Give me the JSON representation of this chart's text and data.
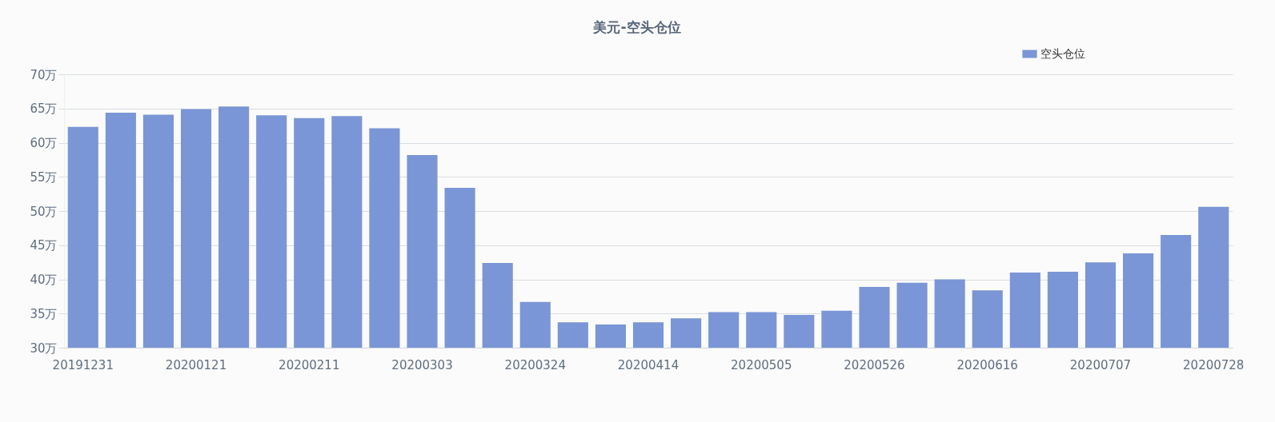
{
  "chart_data": {
    "type": "bar",
    "title": "美元-空头仓位",
    "categories": [
      "20191231",
      null,
      null,
      "20200121",
      null,
      null,
      "20200211",
      null,
      null,
      "20200303",
      null,
      null,
      "20200324",
      null,
      null,
      "20200414",
      null,
      null,
      "20200505",
      null,
      null,
      "20200526",
      null,
      null,
      "20200616",
      null,
      null,
      "20200707",
      null,
      null,
      "20200728"
    ],
    "series": [
      {
        "name": "空头仓位",
        "color": "#7b96d6",
        "values": [
          62.3,
          64.4,
          64.1,
          64.9,
          65.3,
          64.0,
          63.6,
          63.9,
          62.1,
          58.2,
          53.4,
          42.4,
          36.7,
          33.7,
          33.4,
          33.7,
          34.3,
          35.2,
          35.2,
          34.8,
          35.4,
          38.9,
          39.5,
          40.0,
          38.4,
          41.0,
          41.1,
          42.5,
          43.8,
          46.5,
          50.6
        ]
      }
    ],
    "ylim": [
      30,
      70
    ],
    "yticks": [
      {
        "value": 30,
        "label": "30万"
      },
      {
        "value": 35,
        "label": "35万"
      },
      {
        "value": 40,
        "label": "40万"
      },
      {
        "value": 45,
        "label": "45万"
      },
      {
        "value": 50,
        "label": "50万"
      },
      {
        "value": 55,
        "label": "55万"
      },
      {
        "value": 60,
        "label": "60万"
      },
      {
        "value": 65,
        "label": "65万"
      },
      {
        "value": 70,
        "label": "70万"
      }
    ],
    "grid": "y",
    "legend": "top right"
  }
}
